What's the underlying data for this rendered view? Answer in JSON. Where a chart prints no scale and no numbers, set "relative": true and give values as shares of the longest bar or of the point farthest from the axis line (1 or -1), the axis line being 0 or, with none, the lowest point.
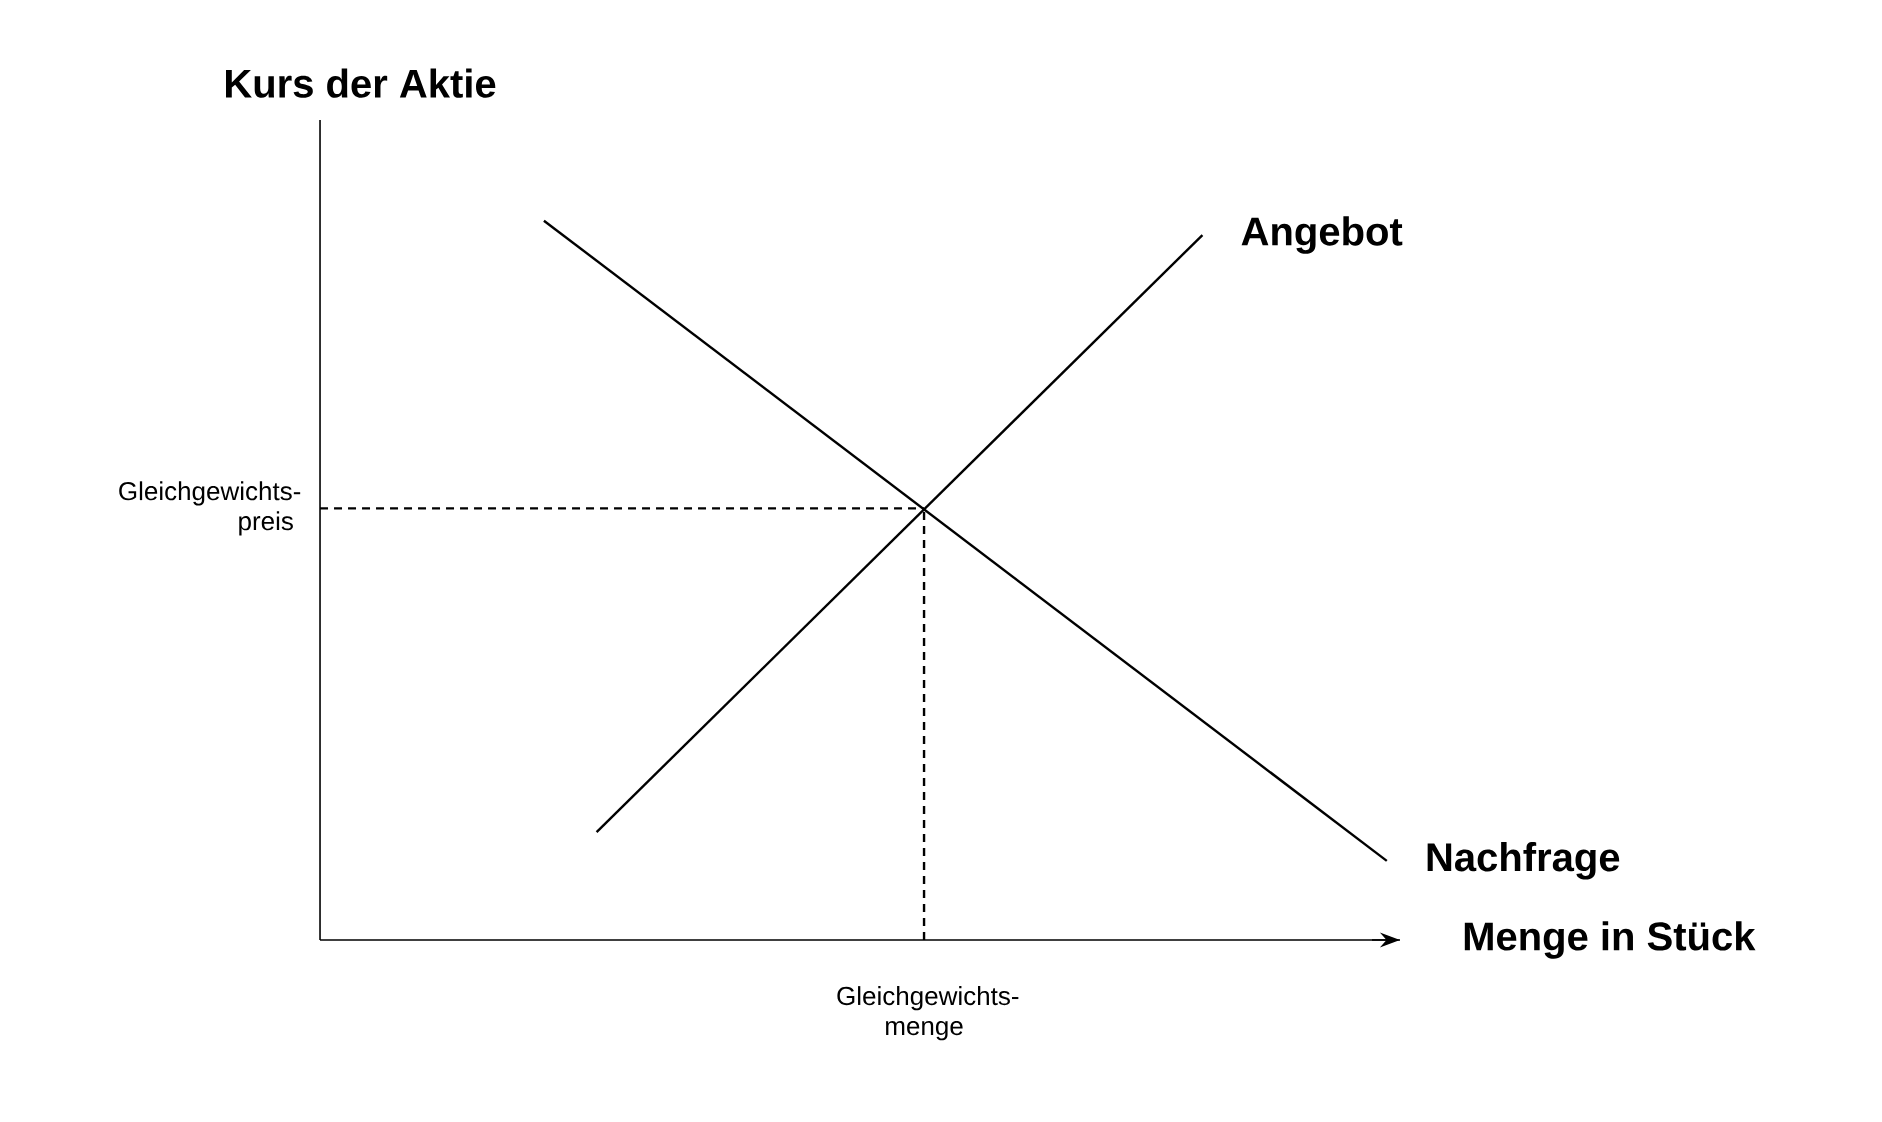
{
  "chart_data": {
    "type": "line",
    "relative": true,
    "xlabel": "Menge in Stück",
    "ylabel": "Kurs der Aktie",
    "marker": "none",
    "legend": false,
    "categories": [
      null,
      null,
      null,
      null,
      null,
      null,
      null,
      null,
      null,
      null,
      null,
      null,
      null,
      null,
      null,
      null,
      null,
      null,
      null,
      null,
      null,
      null,
      null,
      null,
      null,
      null,
      null,
      null,
      null,
      null,
      null,
      null,
      null,
      null,
      null,
      null,
      null,
      null,
      null,
      null,
      null
    ],
    "series": [
      {
        "name": "Angebot",
        "color": "#000000",
        "values": [
          null,
          null,
          null,
          null,
          null,
          null,
          null,
          null,
          null,
          null,
          0.15,
          null,
          null,
          null,
          null,
          null,
          null,
          null,
          null,
          null,
          null,
          null,
          null,
          null,
          null,
          null,
          null,
          null,
          null,
          null,
          null,
          null,
          null,
          0.98,
          null,
          null,
          null,
          null,
          null,
          null,
          null
        ]
      },
      {
        "name": "Nachfrage",
        "color": "#000000",
        "values": [
          null,
          null,
          null,
          null,
          null,
          null,
          null,
          null,
          1.0,
          null,
          null,
          null,
          null,
          null,
          null,
          null,
          null,
          null,
          null,
          null,
          null,
          null,
          null,
          null,
          null,
          null,
          null,
          null,
          null,
          null,
          null,
          null,
          null,
          null,
          null,
          null,
          null,
          null,
          null,
          null,
          0.11
        ]
      }
    ],
    "ref_lines": [
      {
        "axis": "y",
        "value": 0.6,
        "label": "Gleichgewichts-preis",
        "line_style": "dashed",
        "color": "#000000"
      }
    ],
    "annotations": [
      "Gleichgewichts-menge"
    ]
  }
}
